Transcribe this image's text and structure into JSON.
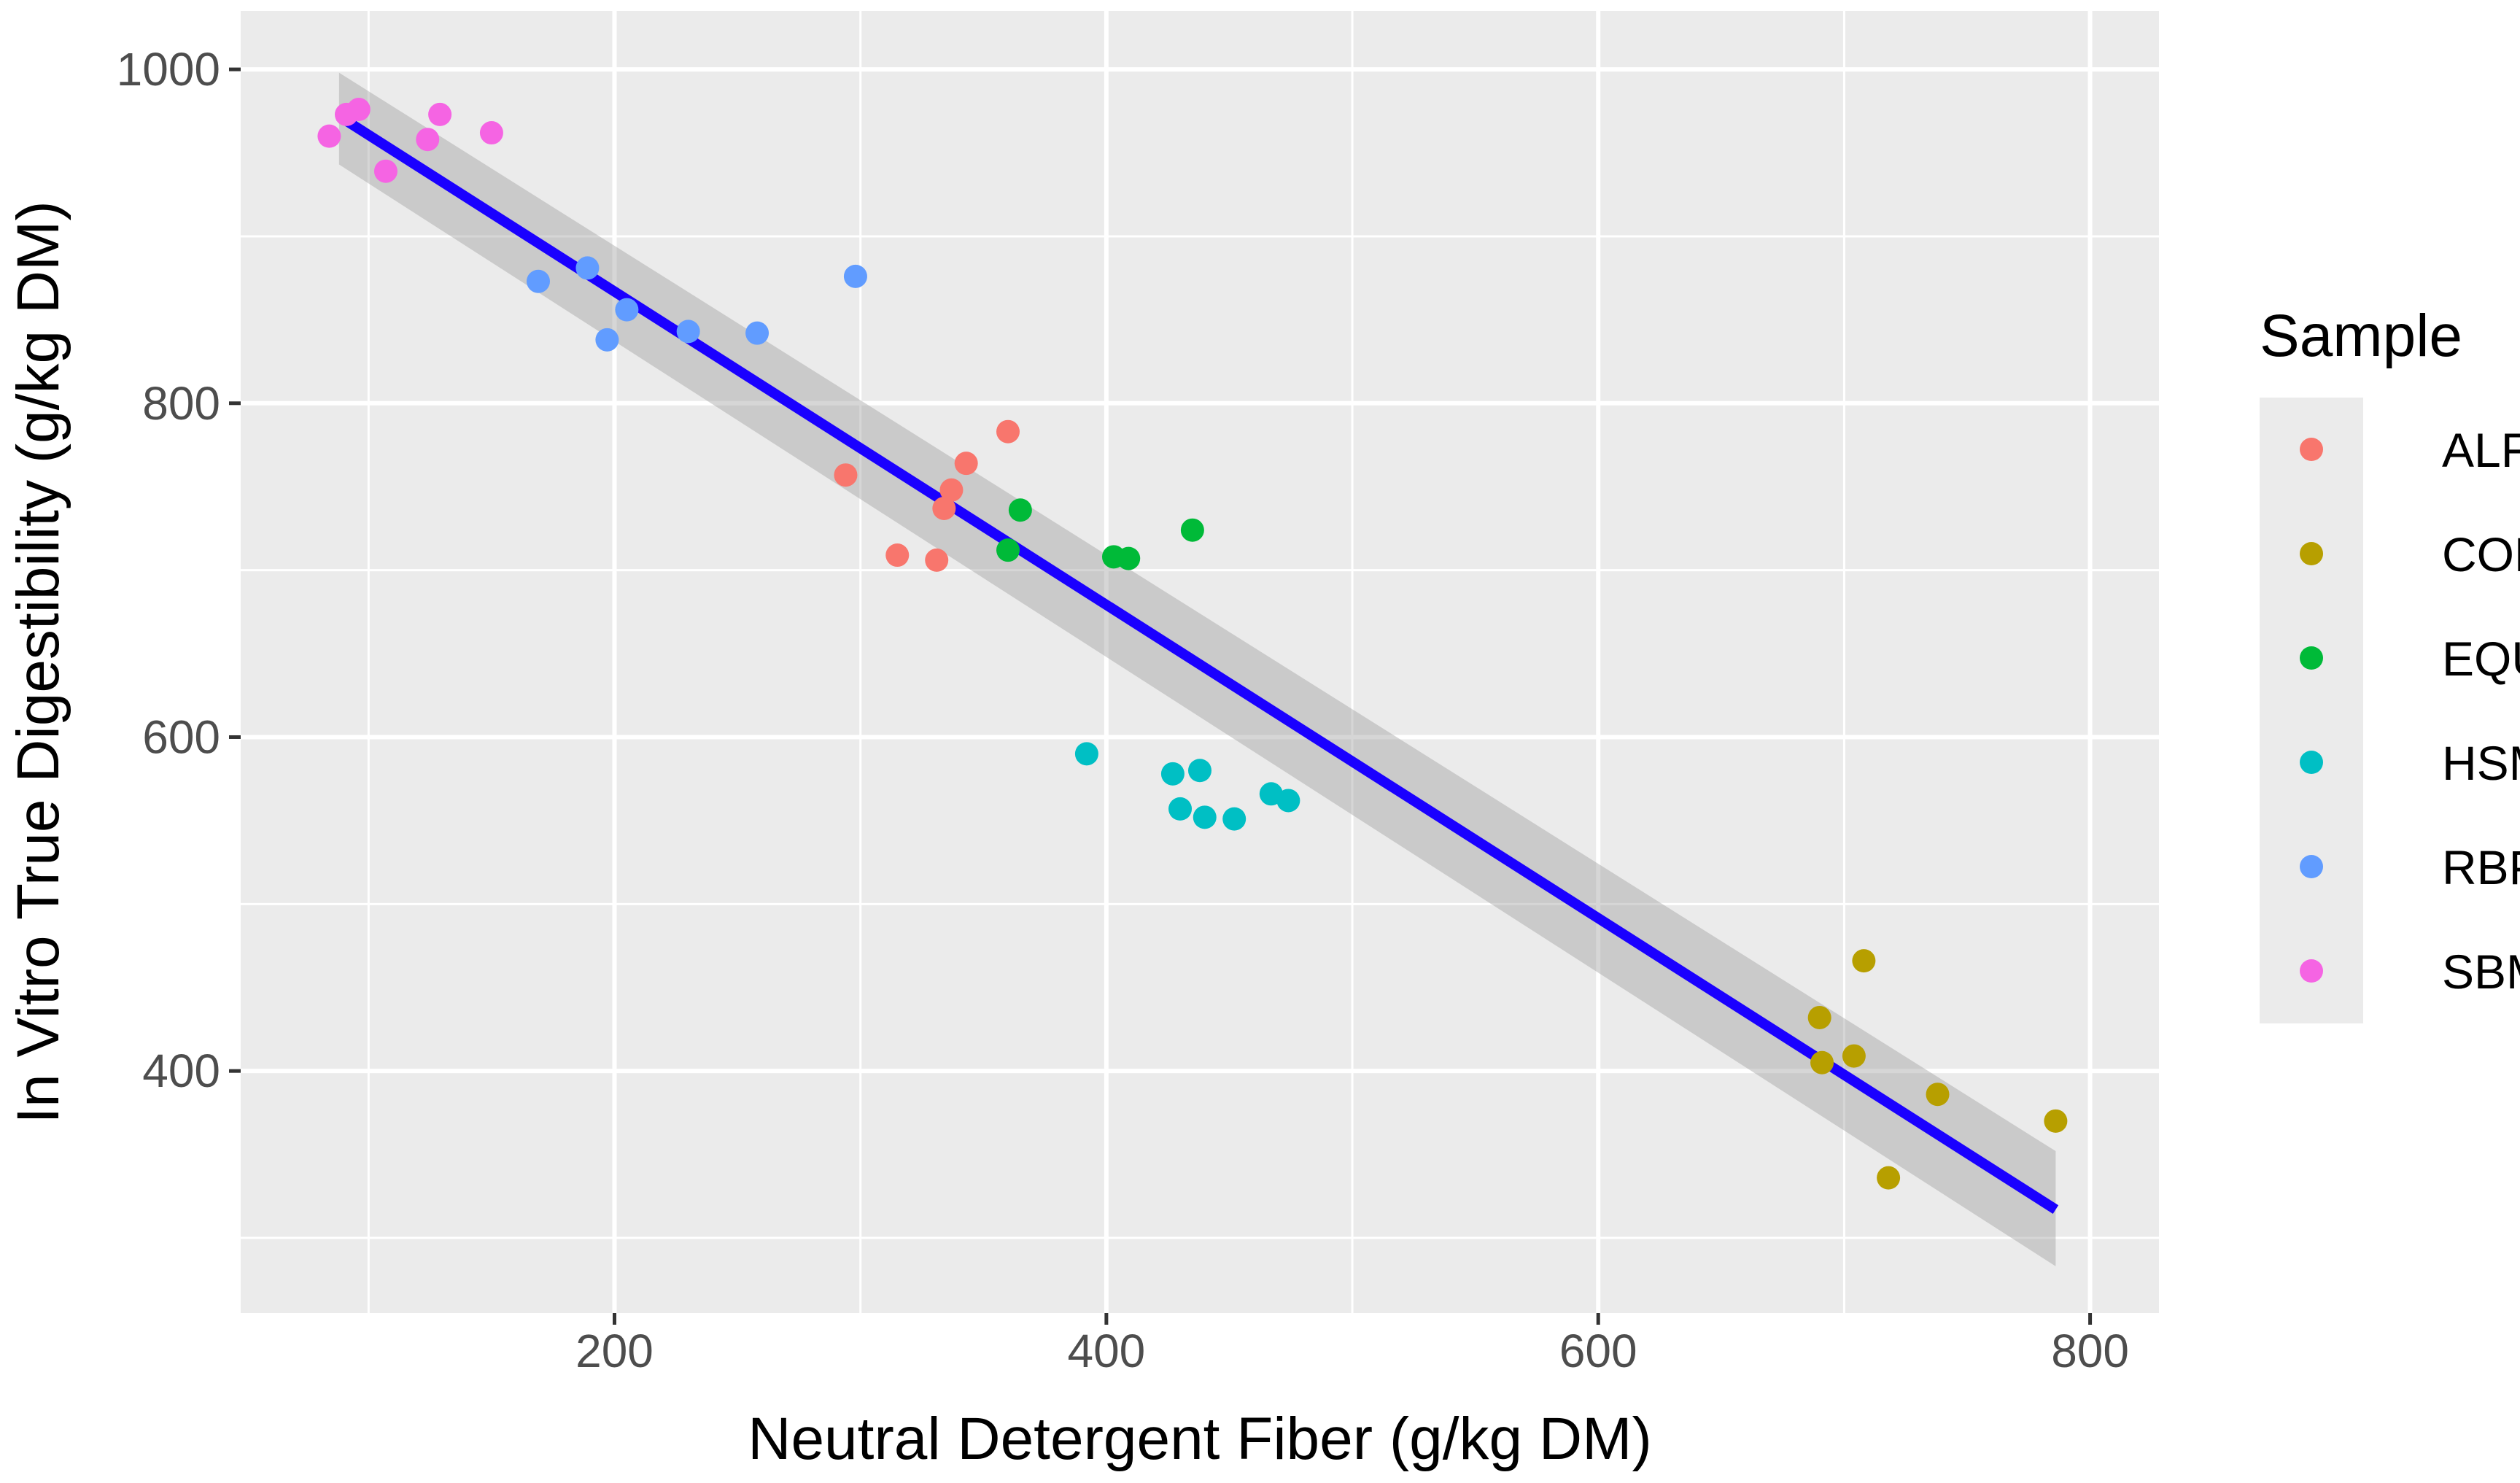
{
  "chart_data": {
    "type": "scatter",
    "title": "",
    "xlabel": "Neutral Detergent Fiber (g/kg DM)",
    "ylabel": "In Vitro True Digestibility (g/kg DM)",
    "xlim": [
      48,
      828
    ],
    "ylim": [
      255,
      1035
    ],
    "x_ticks": [
      "200",
      "400",
      "600",
      "800"
    ],
    "y_ticks": [
      "400",
      "600",
      "800",
      "1000"
    ],
    "grid": true,
    "legend_title": "Sample",
    "legend_position": "right",
    "regression": {
      "x": [
        88,
        786
      ],
      "y": [
        972,
        317
      ],
      "color": "#1a00ff",
      "ci_lower": [
        943,
        283
      ],
      "ci_upper": [
        998,
        352
      ]
    },
    "series": [
      {
        "name": "ALF",
        "color": "#F8766D",
        "points": [
          [
            294,
            757
          ],
          [
            315,
            709
          ],
          [
            331,
            706
          ],
          [
            334,
            737
          ],
          [
            337,
            748
          ],
          [
            343,
            764
          ],
          [
            360,
            783
          ]
        ]
      },
      {
        "name": "COH",
        "color": "#B79F00",
        "points": [
          [
            690,
            432
          ],
          [
            691,
            405
          ],
          [
            704,
            409
          ],
          [
            708,
            466
          ],
          [
            718,
            336
          ],
          [
            738,
            386
          ],
          [
            786,
            370
          ]
        ]
      },
      {
        "name": "EQU",
        "color": "#00BA38",
        "points": [
          [
            360,
            712
          ],
          [
            365,
            736
          ],
          [
            403,
            708
          ],
          [
            409,
            707
          ],
          [
            435,
            724
          ]
        ]
      },
      {
        "name": "HSM",
        "color": "#00BFC4",
        "points": [
          [
            392,
            590
          ],
          [
            427,
            578
          ],
          [
            430,
            557
          ],
          [
            438,
            580
          ],
          [
            440,
            552
          ],
          [
            452,
            551
          ],
          [
            467,
            566
          ],
          [
            474,
            562
          ]
        ]
      },
      {
        "name": "RBP",
        "color": "#619CFF",
        "points": [
          [
            169,
            873
          ],
          [
            189,
            881
          ],
          [
            197,
            838
          ],
          [
            205,
            856
          ],
          [
            230,
            843
          ],
          [
            258,
            842
          ],
          [
            298,
            876
          ]
        ]
      },
      {
        "name": "SBM",
        "color": "#F564E3",
        "points": [
          [
            84,
            960
          ],
          [
            91,
            973
          ],
          [
            96,
            976
          ],
          [
            107,
            939
          ],
          [
            124,
            958
          ],
          [
            129,
            973
          ],
          [
            150,
            962
          ]
        ]
      }
    ]
  }
}
